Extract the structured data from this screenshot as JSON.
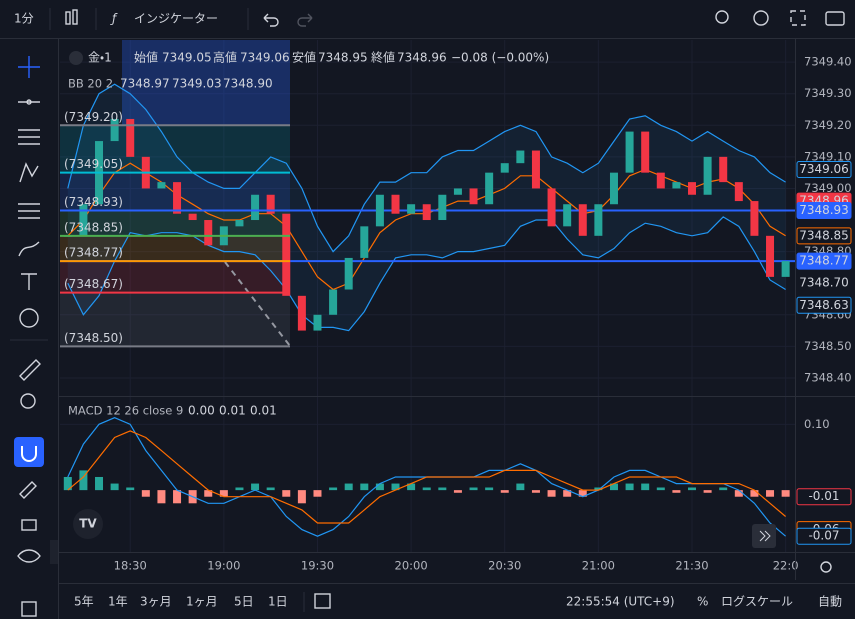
{
  "toolbar": {
    "interval": "1分",
    "indicators": "インジケーター"
  },
  "legend": {
    "symbol": "金・1",
    "open_label": "始値",
    "open": "7349.05",
    "high_label": "高値",
    "high": "7349.06",
    "low_label": "安値",
    "low": "7348.95",
    "close_label": "終値",
    "close": "7348.96",
    "change": "−0.08 (−0.00%)",
    "bb": "BB 20 2",
    "bb_mid": "7348.97",
    "bb_upper": "7349.03",
    "bb_lower": "7348.90",
    "macd": "MACD 12 26 close 9",
    "macd_value": "0.00",
    "macd_signal": "0.01",
    "macd_hist": "0.01"
  },
  "chart_data": {
    "type": "candlestick",
    "up_color": "#26a69a",
    "down_color": "#f23645",
    "xlim": [
      -0.5,
      46.6
    ],
    "xticks": [
      {
        "value": 4,
        "label": "18:30"
      },
      {
        "value": 10,
        "label": "19:00"
      },
      {
        "value": 16,
        "label": "19:30"
      },
      {
        "value": 22,
        "label": "20:00"
      },
      {
        "value": 28,
        "label": "20:30"
      },
      {
        "value": 34,
        "label": "21:00"
      },
      {
        "value": 40,
        "label": "21:30"
      },
      {
        "value": 46,
        "label": "22:0"
      }
    ],
    "ylim": [
      7348.346,
      7349.47
    ],
    "yticks": [
      {
        "value": 7349.4,
        "label": "7349.40"
      },
      {
        "value": 7349.3,
        "label": "7349.30"
      },
      {
        "value": 7349.2,
        "label": "7349.20"
      },
      {
        "value": 7349.1,
        "label": "7349.10"
      },
      {
        "value": 7349.0,
        "label": "7349.00"
      },
      {
        "value": 7348.8,
        "label": "7348.80"
      },
      {
        "value": 7348.6,
        "label": "7348.60"
      },
      {
        "value": 7348.5,
        "label": "7348.50"
      },
      {
        "value": 7348.4,
        "label": "7348.40"
      }
    ],
    "close": [
      7348.85,
      7348.95,
      7349.15,
      7349.22,
      7349.1,
      7349.0,
      7349.02,
      7348.92,
      7348.9,
      7348.82,
      7348.88,
      7348.9,
      7348.98,
      7348.92,
      7348.66,
      7348.55,
      7348.6,
      7348.68,
      7348.78,
      7348.88,
      7348.98,
      7348.92,
      7348.95,
      7348.9,
      7348.98,
      7349.0,
      7348.95,
      7349.05,
      7349.08,
      7349.12,
      7349.0,
      7348.88,
      7348.95,
      7348.85,
      7348.95,
      7349.05,
      7349.18,
      7349.05,
      7349.0,
      7349.02,
      7348.98,
      7349.1,
      7349.02,
      7348.96,
      7348.85,
      7348.72,
      7348.77
    ],
    "overlays": [
      {
        "color": "#2196f3",
        "values": [
          7349.0,
          7349.2,
          7349.3,
          7349.33,
          7349.3,
          7349.25,
          7349.18,
          7349.1,
          7349.05,
          7349.02,
          7349.0,
          7349.0,
          7349.05,
          7349.1,
          7349.08,
          7349.0,
          7348.88,
          7348.8,
          7348.85,
          7348.95,
          7349.02,
          7349.02,
          7349.05,
          7349.05,
          7349.1,
          7349.12,
          7349.12,
          7349.15,
          7349.18,
          7349.2,
          7349.18,
          7349.1,
          7349.08,
          7349.05,
          7349.08,
          7349.15,
          7349.22,
          7349.23,
          7349.2,
          7349.18,
          7349.15,
          7349.18,
          7349.15,
          7349.12,
          7349.1,
          7349.05,
          7349.02
        ]
      },
      {
        "color": "#ff6d00",
        "values": [
          7348.85,
          7348.9,
          7348.98,
          7349.05,
          7349.08,
          7349.05,
          7349.02,
          7348.98,
          7348.95,
          7348.92,
          7348.9,
          7348.9,
          7348.92,
          7348.92,
          7348.88,
          7348.8,
          7348.72,
          7348.68,
          7348.7,
          7348.78,
          7348.86,
          7348.9,
          7348.92,
          7348.92,
          7348.94,
          7348.96,
          7348.96,
          7348.98,
          7349.0,
          7349.04,
          7349.04,
          7349.0,
          7348.96,
          7348.92,
          7348.93,
          7348.98,
          7349.04,
          7349.06,
          7349.04,
          7349.02,
          7349.0,
          7349.02,
          7349.03,
          7349.0,
          7348.95,
          7348.88,
          7348.85
        ]
      },
      {
        "color": "#2196f3",
        "values": [
          7348.7,
          7348.6,
          7348.66,
          7348.77,
          7348.86,
          7348.85,
          7348.86,
          7348.86,
          7348.85,
          7348.82,
          7348.8,
          7348.8,
          7348.79,
          7348.74,
          7348.68,
          7348.6,
          7348.56,
          7348.56,
          7348.55,
          7348.61,
          7348.7,
          7348.78,
          7348.79,
          7348.79,
          7348.78,
          7348.8,
          7348.8,
          7348.81,
          7348.82,
          7348.88,
          7348.9,
          7348.9,
          7348.84,
          7348.79,
          7348.78,
          7348.81,
          7348.86,
          7348.89,
          7348.88,
          7348.86,
          7348.85,
          7348.86,
          7348.91,
          7348.88,
          7348.8,
          7348.71,
          7348.68
        ]
      }
    ],
    "fib_levels": [
      {
        "value": 7349.2,
        "label": "(7349.20)",
        "color": "#787b86"
      },
      {
        "value": 7349.05,
        "label": "(7349.05)",
        "color": "#00bcd4"
      },
      {
        "value": 7348.93,
        "label": "(7348.93)",
        "color": "#2962ff"
      },
      {
        "value": 7348.85,
        "label": "(7348.85)",
        "color": "#4caf50"
      },
      {
        "value": 7348.77,
        "label": "(7348.77)",
        "color": "#ff9800"
      },
      {
        "value": 7348.67,
        "label": "(7348.67)",
        "color": "#f23645"
      },
      {
        "value": 7348.5,
        "label": "(7348.50)",
        "color": "#787b86"
      }
    ],
    "hlines": [
      {
        "value": 7348.93,
        "color": "#2962ff"
      },
      {
        "value": 7348.77,
        "color": "#2962ff"
      }
    ],
    "price_tags": [
      {
        "value": 7349.06,
        "label": "7349.06",
        "color": "#2196f3",
        "style": "outline"
      },
      {
        "value": 7348.96,
        "label": "7348.96",
        "color": "#f23645",
        "style": "filled"
      },
      {
        "value": 7348.93,
        "label": "7348.93",
        "color": "#2962ff",
        "style": "filled"
      },
      {
        "value": 7348.85,
        "label": "7348.85",
        "color": "#ff6d00",
        "style": "outline"
      },
      {
        "value": 7348.77,
        "label": "7348.77",
        "color": "#2962ff",
        "style": "filled"
      },
      {
        "value": 7348.7,
        "label": "7348.70",
        "color": "#f23645",
        "style": "text"
      },
      {
        "value": 7348.63,
        "label": "7348.63",
        "color": "#2196f3",
        "style": "outline"
      }
    ],
    "macd": {
      "ylim": [
        -0.094,
        0.14
      ],
      "yticks": [
        {
          "value": 0.1,
          "label": "0.10"
        }
      ],
      "line_color": "#2196f3",
      "signal_color": "#ff6d00",
      "hist_up_color": "#26a69a",
      "hist_down_color": "#ff8a80",
      "line": [
        0.02,
        0.07,
        0.1,
        0.11,
        0.1,
        0.06,
        0.03,
        0.0,
        -0.01,
        -0.02,
        -0.02,
        -0.01,
        0.0,
        -0.01,
        -0.04,
        -0.06,
        -0.07,
        -0.06,
        -0.04,
        -0.01,
        0.01,
        0.02,
        0.02,
        0.02,
        0.02,
        0.02,
        0.02,
        0.03,
        0.03,
        0.04,
        0.03,
        0.01,
        0.0,
        -0.01,
        0.0,
        0.02,
        0.03,
        0.03,
        0.02,
        0.01,
        0.01,
        0.01,
        0.01,
        0.0,
        -0.02,
        -0.05,
        -0.07
      ],
      "signal": [
        0.0,
        0.02,
        0.05,
        0.08,
        0.09,
        0.08,
        0.06,
        0.04,
        0.02,
        0.0,
        -0.01,
        -0.01,
        -0.01,
        -0.01,
        -0.02,
        -0.03,
        -0.05,
        -0.05,
        -0.05,
        -0.03,
        -0.01,
        0.0,
        0.01,
        0.02,
        0.02,
        0.02,
        0.02,
        0.02,
        0.03,
        0.03,
        0.03,
        0.02,
        0.01,
        0.0,
        0.0,
        0.01,
        0.02,
        0.02,
        0.02,
        0.02,
        0.01,
        0.01,
        0.01,
        0.01,
        0.0,
        -0.02,
        -0.04
      ],
      "hist": [
        0.02,
        0.03,
        0.02,
        0.01,
        0.004,
        -0.01,
        -0.02,
        -0.02,
        -0.02,
        -0.01,
        -0.01,
        0.004,
        0.01,
        0.004,
        -0.01,
        -0.02,
        -0.01,
        0.004,
        0.01,
        0.01,
        0.01,
        0.01,
        0.01,
        0.004,
        0.004,
        -0.004,
        0.004,
        0.004,
        -0.004,
        0.01,
        -0.004,
        -0.01,
        -0.01,
        -0.01,
        0.004,
        0.01,
        0.01,
        0.01,
        0.004,
        -0.004,
        0.004,
        -0.004,
        0.004,
        -0.01,
        -0.01,
        -0.01,
        -0.01
      ],
      "tags": [
        {
          "value": -0.01,
          "label": "-0.01",
          "color": "#f23645"
        },
        {
          "value": -0.06,
          "label": "-0.06",
          "color": "#ff6d00"
        },
        {
          "value": -0.07,
          "label": "-0.07",
          "color": "#2196f3"
        }
      ]
    }
  },
  "bottom_bar": {
    "ranges": [
      "5年",
      "1年",
      "3ヶ月",
      "1ヶ月",
      "5日",
      "1日"
    ],
    "clock": "22:55:54 (UTC+9)",
    "percent": "%",
    "log": "ログスケール",
    "auto": "自動"
  }
}
